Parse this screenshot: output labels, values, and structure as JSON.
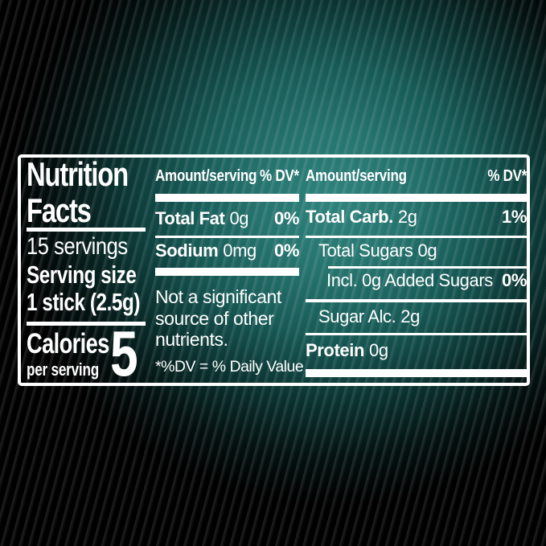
{
  "colors": {
    "background": "#000000",
    "glow_teal": "#26736e",
    "panel_border": "#ffffff",
    "panel_text": "#ffffff"
  },
  "panel": {
    "title_line1": "Nutrition",
    "title_line2": "Facts",
    "servings": "15 servings",
    "serving_size_label": "Serving size",
    "serving_size_value": "1 stick (2.5g)",
    "calories_label": "Calories",
    "calories_sublabel": "per serving",
    "calories_value": "5",
    "columns": {
      "middle": {
        "header_amount": "Amount/serving",
        "header_dv": "% DV*",
        "rows": [
          {
            "name": "Total Fat",
            "amount": "0g",
            "dv": "0%"
          },
          {
            "name": "Sodium",
            "amount": "0mg",
            "dv": "0%"
          }
        ],
        "note": "Not a significant source of other nutrients.",
        "footnote": "*%DV = % Daily Value"
      },
      "right": {
        "header_amount": "Amount/serving",
        "header_dv": "% DV*",
        "rows": [
          {
            "name": "Total Carb.",
            "amount": "2g",
            "dv": "1%"
          },
          {
            "name": "Total Sugars",
            "amount": "0g",
            "dv": ""
          },
          {
            "name": "Incl. 0g Added Sugars",
            "amount": "",
            "dv": "0%"
          },
          {
            "name": "Sugar Alc.",
            "amount": "2g",
            "dv": ""
          },
          {
            "name": "Protein",
            "amount": "0g",
            "dv": ""
          }
        ]
      }
    }
  }
}
